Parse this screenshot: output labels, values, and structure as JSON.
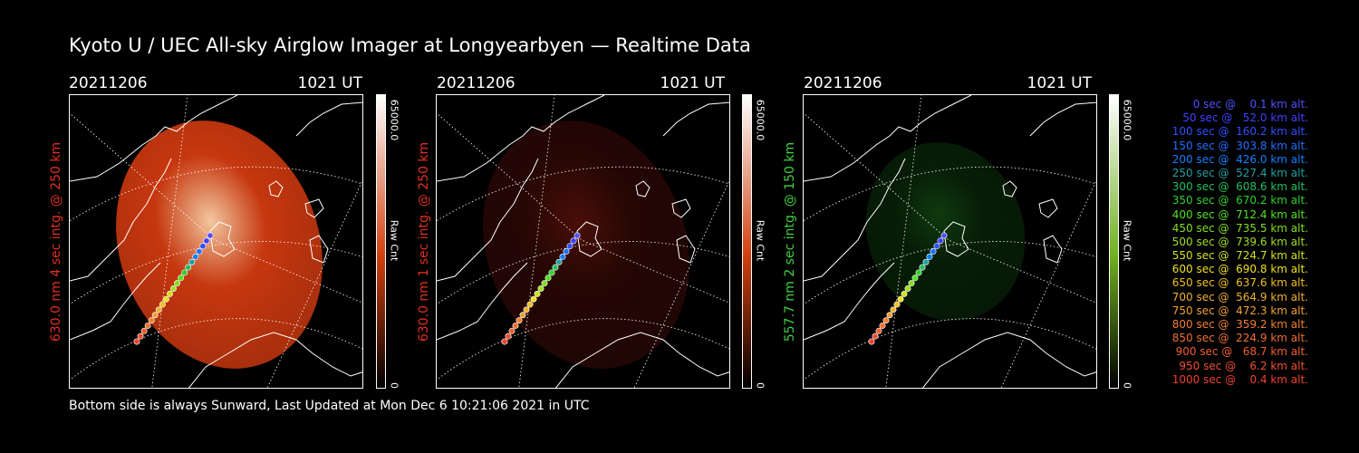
{
  "title": "Kyoto U / UEC All-sky Airglow Imager at Longyearbyen — Realtime Data",
  "footer": "Bottom side is always Sunward, Last Updated at Mon Dec  6 10:21:06 2021 in UTC",
  "panels": [
    {
      "date": "20211206",
      "time": "1021 UT",
      "side_label": "630.0 nm 4 sec intg. @ 250 km",
      "side_color": "#e03020",
      "cbar_max": "65000.0",
      "cbar_min": "0",
      "cbar_title": "Raw Cnt",
      "cbar_color": "#d04010",
      "glow_color": "#d03a10",
      "glow_level": 0.95
    },
    {
      "date": "20211206",
      "time": "1021 UT",
      "side_label": "630.0 nm 1 sec intg. @ 250 km",
      "side_color": "#e03020",
      "cbar_max": "65000.0",
      "cbar_min": "0",
      "cbar_title": "Raw Cnt",
      "cbar_color": "#d04010",
      "glow_color": "#4a0e08",
      "glow_level": 0.5
    },
    {
      "date": "20211206",
      "time": "1021 UT",
      "side_label": "557.7 nm 2 sec intg. @ 150 km",
      "side_color": "#40d040",
      "cbar_max": "65000.0",
      "cbar_min": "0",
      "cbar_title": "Raw Cnt",
      "cbar_color": "#70b020",
      "glow_color": "#0e3a0e",
      "glow_level": 0.5
    }
  ],
  "legend": [
    {
      "text": "0 sec @    0.1 km alt.",
      "color": "#5050ff"
    },
    {
      "text": "50 sec @   52.0 km alt.",
      "color": "#4040ff"
    },
    {
      "text": "100 sec @  160.2 km alt.",
      "color": "#3050ff"
    },
    {
      "text": "150 sec @  303.8 km alt.",
      "color": "#2070ff"
    },
    {
      "text": "200 sec @  426.0 km alt.",
      "color": "#1080ff"
    },
    {
      "text": "250 sec @  527.4 km alt.",
      "color": "#20a0a0"
    },
    {
      "text": "300 sec @  608.6 km alt.",
      "color": "#20c060"
    },
    {
      "text": "350 sec @  670.2 km alt.",
      "color": "#30d030"
    },
    {
      "text": "400 sec @  712.4 km alt.",
      "color": "#50e020"
    },
    {
      "text": "450 sec @  735.5 km alt.",
      "color": "#80e020"
    },
    {
      "text": "500 sec @  739.6 km alt.",
      "color": "#a0e020"
    },
    {
      "text": "550 sec @  724.7 km alt.",
      "color": "#d0e020"
    },
    {
      "text": "600 sec @  690.8 km alt.",
      "color": "#f0e020"
    },
    {
      "text": "650 sec @  637.6 km alt.",
      "color": "#f0c020"
    },
    {
      "text": "700 sec @  564.9 km alt.",
      "color": "#f0b030"
    },
    {
      "text": "750 sec @  472.3 km alt.",
      "color": "#f0a030"
    },
    {
      "text": "800 sec @  359.2 km alt.",
      "color": "#f08030"
    },
    {
      "text": "850 sec @  224.9 km alt.",
      "color": "#f07030"
    },
    {
      "text": "900 sec @   68.7 km alt.",
      "color": "#f06030"
    },
    {
      "text": "950 sec @    6.2 km alt.",
      "color": "#f05030"
    },
    {
      "text": "1000 sec @    0.4 km alt.",
      "color": "#f04030"
    }
  ]
}
